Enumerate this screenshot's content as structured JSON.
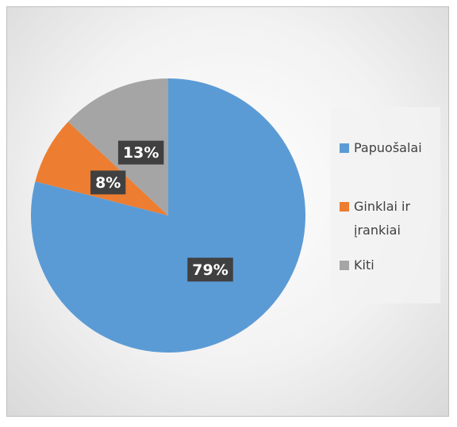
{
  "chart_data": {
    "type": "pie",
    "categories": [
      "Papuošalai",
      "Ginklai ir įrankiai",
      "Kiti"
    ],
    "values": [
      79,
      8,
      13
    ],
    "value_labels": [
      "79%",
      "8%",
      "13%"
    ],
    "colors": [
      "#5b9bd5",
      "#ed7d31",
      "#a5a5a5"
    ],
    "legend": "right"
  }
}
